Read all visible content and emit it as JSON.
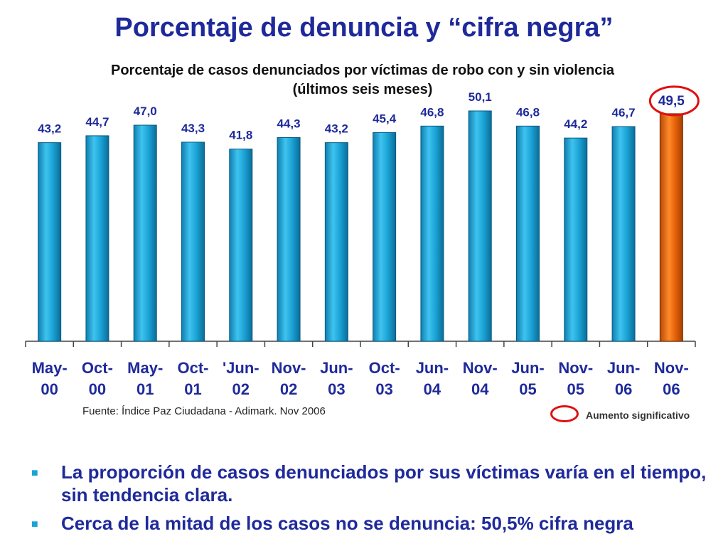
{
  "page": {
    "title": "Porcentaje de denuncia y “cifra negra”",
    "subtitle_line1": "Porcentaje de casos denunciados por víctimas de robo con y sin violencia",
    "subtitle_line2": "(últimos seis meses)",
    "source": "Fuente: Índice Paz Ciudadana - Adimark. Nov 2006",
    "legend_label": "Aumento significativo",
    "bullets": [
      "La proporción de casos denunciados por sus víctimas varía en el tiempo, sin tendencia clara.",
      "Cerca de la mitad de los casos no se denuncia: 50,5% cifra negra"
    ]
  },
  "chart_data": {
    "type": "bar",
    "categories": [
      [
        "May-",
        "00"
      ],
      [
        "Oct-",
        "00"
      ],
      [
        "May-",
        "01"
      ],
      [
        "Oct-",
        "01"
      ],
      [
        "'Jun-",
        "02"
      ],
      [
        "Nov-",
        "02"
      ],
      [
        "Jun-",
        "03"
      ],
      [
        "Oct-",
        "03"
      ],
      [
        "Jun-",
        "04"
      ],
      [
        "Nov-",
        "04"
      ],
      [
        "Jun-",
        "05"
      ],
      [
        "Nov-",
        "05"
      ],
      [
        "Jun-",
        "06"
      ],
      [
        "Nov-",
        "06"
      ]
    ],
    "values": [
      43.2,
      44.7,
      47.0,
      43.3,
      41.8,
      44.3,
      43.2,
      45.4,
      46.8,
      50.1,
      46.8,
      44.2,
      46.7,
      49.5
    ],
    "value_labels": [
      "43,2",
      "44,7",
      "47,0",
      "43,3",
      "41,8",
      "44,3",
      "43,2",
      "45,4",
      "46,8",
      "50,1",
      "46,8",
      "44,2",
      "46,7",
      "49,5"
    ],
    "highlight_index": 13,
    "colors": {
      "bar": "#1aa3d6",
      "bar_highlight": "#e8650a",
      "label": "#1f2a9a",
      "circle": "#e01010"
    },
    "ylim": [
      0,
      50.1
    ],
    "grid": false,
    "xlabel": "",
    "ylabel": ""
  }
}
